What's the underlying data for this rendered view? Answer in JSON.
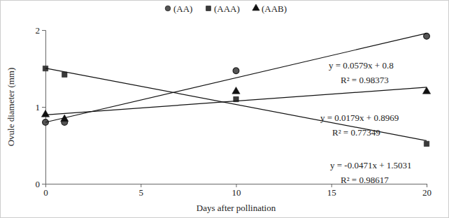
{
  "chart_data": {
    "type": "scatter",
    "xlabel": "Days after pollination",
    "ylabel": "Ovule diameter (mm)",
    "x": [
      0,
      1,
      10,
      20
    ],
    "xlim": [
      0,
      20
    ],
    "xticks": [
      0,
      5,
      10,
      15,
      20
    ],
    "ylim": [
      0,
      2
    ],
    "yticks": [
      0,
      1,
      2
    ],
    "legend": "top",
    "series": [
      {
        "name": "(AA)",
        "color": "#555555",
        "marker": "circle",
        "values": [
          0.8,
          0.8,
          1.47,
          1.92
        ]
      },
      {
        "name": "(AAA)",
        "color": "#3a3a3a",
        "marker": "square",
        "values": [
          1.5,
          1.42,
          1.1,
          0.52
        ]
      },
      {
        "name": "(AAB)",
        "color": "#111111",
        "marker": "triangle",
        "values": [
          0.9,
          0.84,
          1.2,
          1.2
        ]
      },
      {
        "type": "line",
        "color": "#111111",
        "line_style": "solid",
        "x": [
          0,
          20
        ],
        "values": [
          0.8,
          1.958
        ]
      },
      {
        "type": "line",
        "color": "#111111",
        "line_style": "solid",
        "x": [
          0,
          20
        ],
        "values": [
          1.503,
          0.561
        ]
      },
      {
        "type": "line",
        "color": "#111111",
        "line_style": "solid",
        "x": [
          0,
          20
        ],
        "values": [
          0.897,
          1.255
        ]
      }
    ],
    "annotations": [
      "y = 0.0579x + 0.8",
      "R² = 0.98373",
      "y = 0.0179x + 0.8969",
      "R² = 0.77349",
      "y = -0.0471x + 1.5031",
      "R² = 0.98617"
    ]
  }
}
